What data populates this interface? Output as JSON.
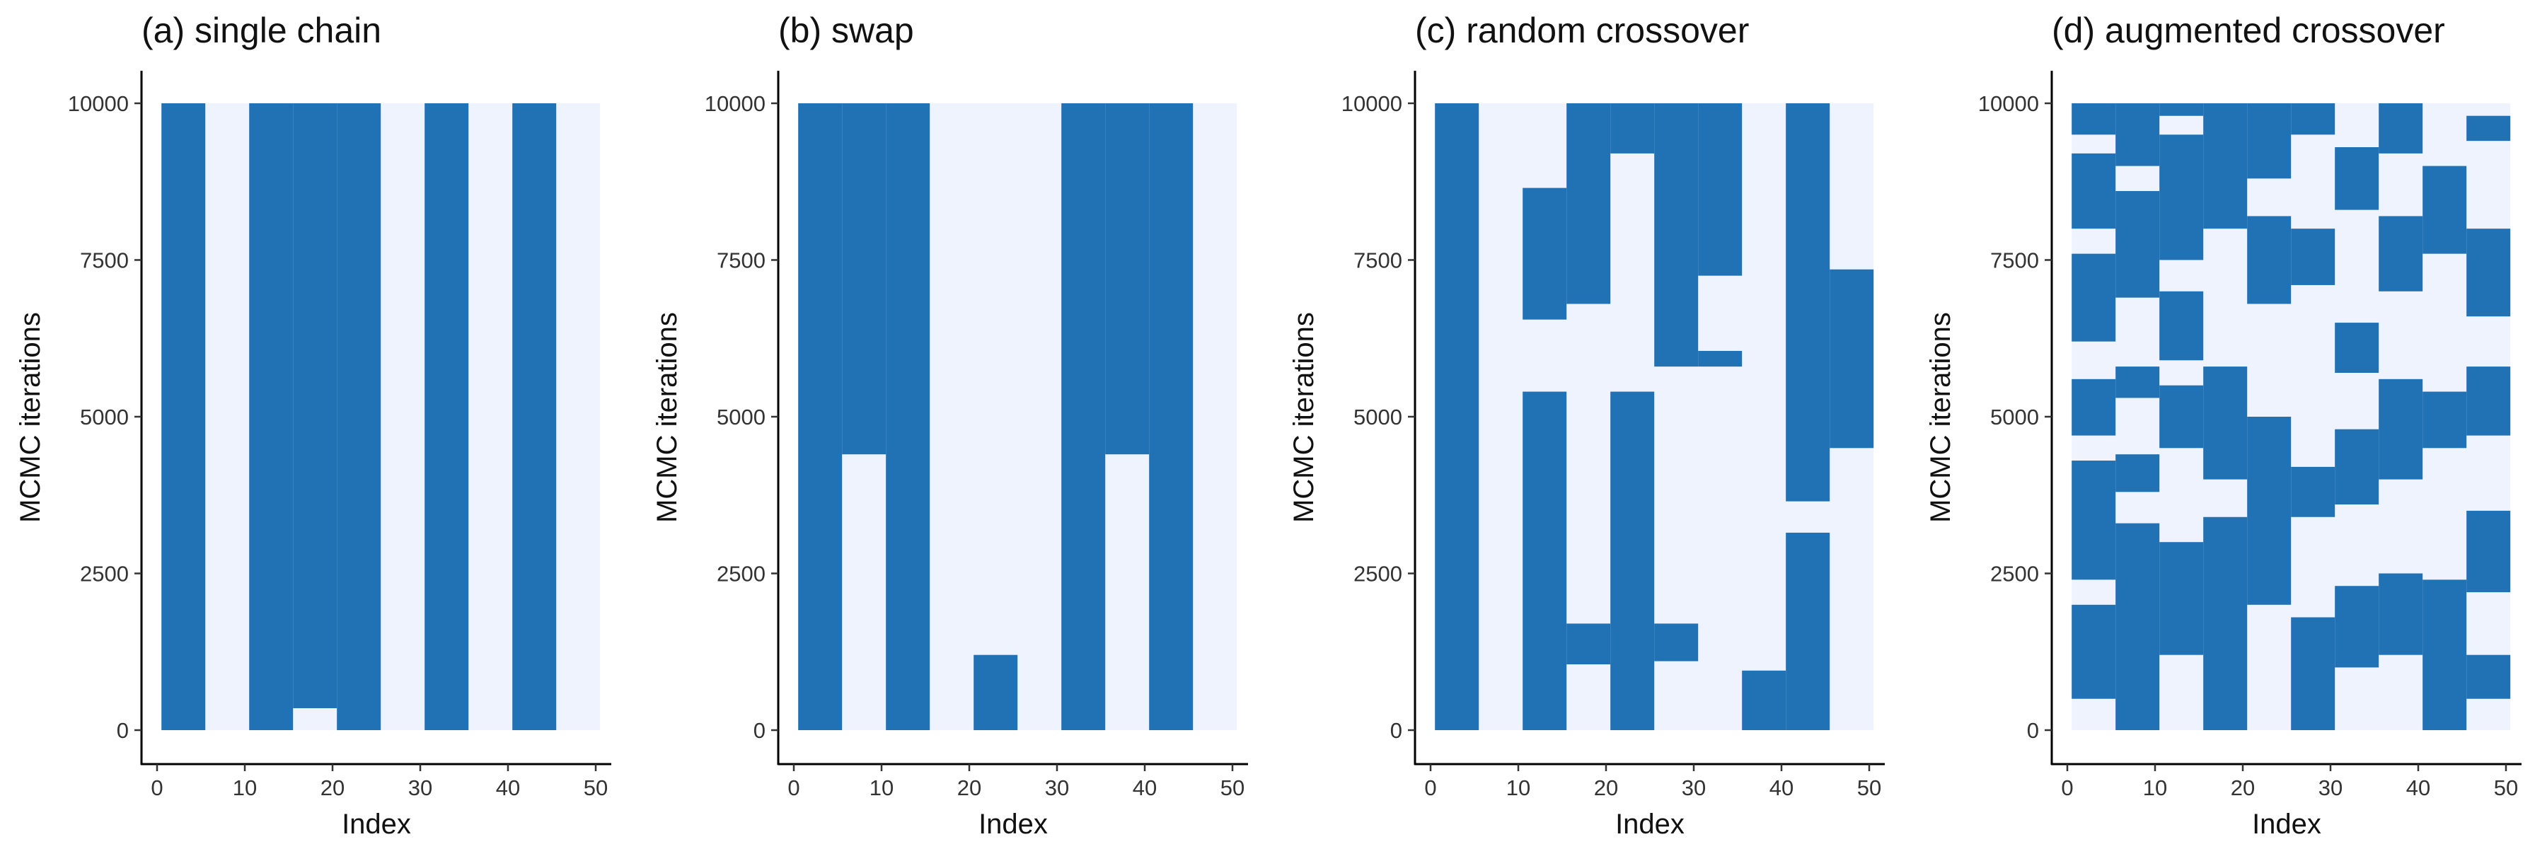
{
  "chart_data": [
    {
      "type": "heatmap",
      "title": "(a) single chain",
      "xlabel": "Index",
      "ylabel": "MCMC iterations",
      "xlim": [
        0,
        50
      ],
      "ylim": [
        0,
        10000
      ],
      "xticks": [
        0,
        10,
        20,
        30,
        40,
        50
      ],
      "yticks": [
        0,
        2500,
        5000,
        7500,
        10000
      ],
      "legend": "none",
      "colors": {
        "included": "#2171b5",
        "excluded": "#eef3fe"
      },
      "included_blocks": [
        {
          "x": [
            0.5,
            5.5
          ],
          "y": [
            0,
            10000
          ]
        },
        {
          "x": [
            10.5,
            15.5
          ],
          "y": [
            0,
            10000
          ]
        },
        {
          "x": [
            15.5,
            20.5
          ],
          "y": [
            350,
            10000
          ]
        },
        {
          "x": [
            20.5,
            25.5
          ],
          "y": [
            0,
            10000
          ]
        },
        {
          "x": [
            30.5,
            35.5
          ],
          "y": [
            0,
            10000
          ]
        },
        {
          "x": [
            40.5,
            45.5
          ],
          "y": [
            0,
            10000
          ]
        }
      ]
    },
    {
      "type": "heatmap",
      "title": "(b) swap",
      "xlabel": "Index",
      "ylabel": "MCMC iterations",
      "xlim": [
        0,
        50
      ],
      "ylim": [
        0,
        10000
      ],
      "xticks": [
        0,
        10,
        20,
        30,
        40,
        50
      ],
      "yticks": [
        0,
        2500,
        5000,
        7500,
        10000
      ],
      "legend": "none",
      "colors": {
        "included": "#2171b5",
        "excluded": "#eef3fe"
      },
      "included_blocks": [
        {
          "x": [
            0.5,
            5.5
          ],
          "y": [
            0,
            10000
          ]
        },
        {
          "x": [
            5.5,
            10.5
          ],
          "y": [
            4400,
            10000
          ]
        },
        {
          "x": [
            10.5,
            15.5
          ],
          "y": [
            0,
            10000
          ]
        },
        {
          "x": [
            20.5,
            25.5
          ],
          "y": [
            0,
            1200
          ]
        },
        {
          "x": [
            30.5,
            35.5
          ],
          "y": [
            0,
            10000
          ]
        },
        {
          "x": [
            35.5,
            40.5
          ],
          "y": [
            4400,
            10000
          ]
        },
        {
          "x": [
            40.5,
            45.5
          ],
          "y": [
            0,
            10000
          ]
        }
      ]
    },
    {
      "type": "heatmap",
      "title": "(c) random crossover",
      "xlabel": "Index",
      "ylabel": "MCMC iterations",
      "xlim": [
        0,
        50
      ],
      "ylim": [
        0,
        10000
      ],
      "xticks": [
        0,
        10,
        20,
        30,
        40,
        50
      ],
      "yticks": [
        0,
        2500,
        5000,
        7500,
        10000
      ],
      "legend": "none",
      "colors": {
        "included": "#2171b5",
        "excluded": "#eef3fe"
      },
      "included_blocks": [
        {
          "x": [
            0.5,
            5.5
          ],
          "y": [
            0,
            10000
          ]
        },
        {
          "x": [
            10.5,
            15.5
          ],
          "y": [
            6550,
            8650
          ]
        },
        {
          "x": [
            10.5,
            15.5
          ],
          "y": [
            0,
            5400
          ]
        },
        {
          "x": [
            15.5,
            20.5
          ],
          "y": [
            6800,
            10000
          ]
        },
        {
          "x": [
            15.5,
            20.5
          ],
          "y": [
            1050,
            1700
          ]
        },
        {
          "x": [
            20.5,
            25.5
          ],
          "y": [
            9200,
            10000
          ]
        },
        {
          "x": [
            20.5,
            25.5
          ],
          "y": [
            0,
            5400
          ]
        },
        {
          "x": [
            25.5,
            30.5
          ],
          "y": [
            5800,
            10000
          ]
        },
        {
          "x": [
            25.5,
            30.5
          ],
          "y": [
            1100,
            1700
          ]
        },
        {
          "x": [
            30.5,
            35.5
          ],
          "y": [
            7250,
            10000
          ]
        },
        {
          "x": [
            30.5,
            35.5
          ],
          "y": [
            5800,
            6050
          ]
        },
        {
          "x": [
            35.5,
            40.5
          ],
          "y": [
            0,
            950
          ]
        },
        {
          "x": [
            40.5,
            45.5
          ],
          "y": [
            3650,
            10000
          ]
        },
        {
          "x": [
            40.5,
            45.5
          ],
          "y": [
            0,
            3150
          ]
        },
        {
          "x": [
            45.5,
            50.5
          ],
          "y": [
            4500,
            7350
          ]
        }
      ]
    },
    {
      "type": "heatmap",
      "title": "(d) augmented crossover",
      "xlabel": "Index",
      "ylabel": "MCMC iterations",
      "xlim": [
        0,
        50
      ],
      "ylim": [
        0,
        10000
      ],
      "xticks": [
        0,
        10,
        20,
        30,
        40,
        50
      ],
      "yticks": [
        0,
        2500,
        5000,
        7500,
        10000
      ],
      "legend": "none",
      "colors": {
        "included": "#2171b5",
        "excluded": "#eef3fe"
      },
      "included_blocks": [
        {
          "x": [
            0.5,
            5.5
          ],
          "y": [
            9500,
            10000
          ]
        },
        {
          "x": [
            0.5,
            5.5
          ],
          "y": [
            8000,
            9200
          ]
        },
        {
          "x": [
            0.5,
            5.5
          ],
          "y": [
            6200,
            7600
          ]
        },
        {
          "x": [
            0.5,
            5.5
          ],
          "y": [
            4700,
            5600
          ]
        },
        {
          "x": [
            0.5,
            5.5
          ],
          "y": [
            2400,
            4300
          ]
        },
        {
          "x": [
            0.5,
            5.5
          ],
          "y": [
            500,
            2000
          ]
        },
        {
          "x": [
            5.5,
            10.5
          ],
          "y": [
            9000,
            10000
          ]
        },
        {
          "x": [
            5.5,
            10.5
          ],
          "y": [
            6900,
            8600
          ]
        },
        {
          "x": [
            5.5,
            10.5
          ],
          "y": [
            5300,
            5800
          ]
        },
        {
          "x": [
            5.5,
            10.5
          ],
          "y": [
            3800,
            4400
          ]
        },
        {
          "x": [
            5.5,
            10.5
          ],
          "y": [
            0,
            3300
          ]
        },
        {
          "x": [
            10.5,
            15.5
          ],
          "y": [
            9800,
            10000
          ]
        },
        {
          "x": [
            10.5,
            15.5
          ],
          "y": [
            7500,
            9500
          ]
        },
        {
          "x": [
            10.5,
            15.5
          ],
          "y": [
            5900,
            7000
          ]
        },
        {
          "x": [
            10.5,
            15.5
          ],
          "y": [
            4500,
            5500
          ]
        },
        {
          "x": [
            10.5,
            15.5
          ],
          "y": [
            1200,
            3000
          ]
        },
        {
          "x": [
            15.5,
            20.5
          ],
          "y": [
            8000,
            10000
          ]
        },
        {
          "x": [
            15.5,
            20.5
          ],
          "y": [
            4000,
            5800
          ]
        },
        {
          "x": [
            15.5,
            20.5
          ],
          "y": [
            0,
            3400
          ]
        },
        {
          "x": [
            20.5,
            25.5
          ],
          "y": [
            8800,
            10000
          ]
        },
        {
          "x": [
            20.5,
            25.5
          ],
          "y": [
            6800,
            8200
          ]
        },
        {
          "x": [
            20.5,
            25.5
          ],
          "y": [
            2000,
            5000
          ]
        },
        {
          "x": [
            25.5,
            30.5
          ],
          "y": [
            9500,
            10000
          ]
        },
        {
          "x": [
            25.5,
            30.5
          ],
          "y": [
            7100,
            8000
          ]
        },
        {
          "x": [
            25.5,
            30.5
          ],
          "y": [
            3400,
            4200
          ]
        },
        {
          "x": [
            25.5,
            30.5
          ],
          "y": [
            0,
            1800
          ]
        },
        {
          "x": [
            30.5,
            35.5
          ],
          "y": [
            8300,
            9300
          ]
        },
        {
          "x": [
            30.5,
            35.5
          ],
          "y": [
            5700,
            6500
          ]
        },
        {
          "x": [
            30.5,
            35.5
          ],
          "y": [
            3600,
            4800
          ]
        },
        {
          "x": [
            30.5,
            35.5
          ],
          "y": [
            1000,
            2300
          ]
        },
        {
          "x": [
            35.5,
            40.5
          ],
          "y": [
            9200,
            10000
          ]
        },
        {
          "x": [
            35.5,
            40.5
          ],
          "y": [
            7000,
            8200
          ]
        },
        {
          "x": [
            35.5,
            40.5
          ],
          "y": [
            4000,
            5600
          ]
        },
        {
          "x": [
            35.5,
            40.5
          ],
          "y": [
            1200,
            2500
          ]
        },
        {
          "x": [
            40.5,
            45.5
          ],
          "y": [
            7600,
            9000
          ]
        },
        {
          "x": [
            40.5,
            45.5
          ],
          "y": [
            4500,
            5400
          ]
        },
        {
          "x": [
            40.5,
            45.5
          ],
          "y": [
            0,
            2400
          ]
        },
        {
          "x": [
            45.5,
            50.5
          ],
          "y": [
            9400,
            9800
          ]
        },
        {
          "x": [
            45.5,
            50.5
          ],
          "y": [
            6600,
            8000
          ]
        },
        {
          "x": [
            45.5,
            50.5
          ],
          "y": [
            4700,
            5800
          ]
        },
        {
          "x": [
            45.5,
            50.5
          ],
          "y": [
            2200,
            3500
          ]
        },
        {
          "x": [
            45.5,
            50.5
          ],
          "y": [
            500,
            1200
          ]
        }
      ]
    }
  ]
}
